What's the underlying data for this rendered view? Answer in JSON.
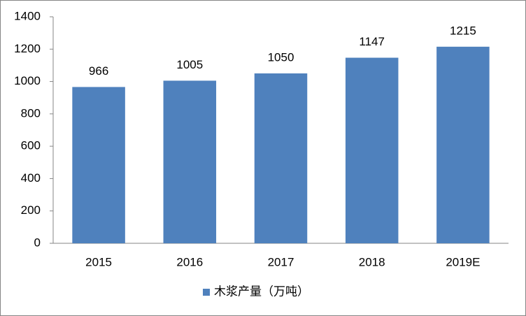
{
  "chart_data": {
    "type": "bar",
    "categories": [
      "2015",
      "2016",
      "2017",
      "2018",
      "2019E"
    ],
    "series": [
      {
        "name": "木浆产量（万吨）",
        "color": "#4f81bd",
        "values": [
          966,
          1005,
          1050,
          1147,
          1215
        ]
      }
    ],
    "ylim": [
      0,
      1400
    ],
    "yticks": [
      0,
      200,
      400,
      600,
      800,
      1000,
      1200,
      1400
    ],
    "grid": false,
    "legend": "bottom"
  }
}
